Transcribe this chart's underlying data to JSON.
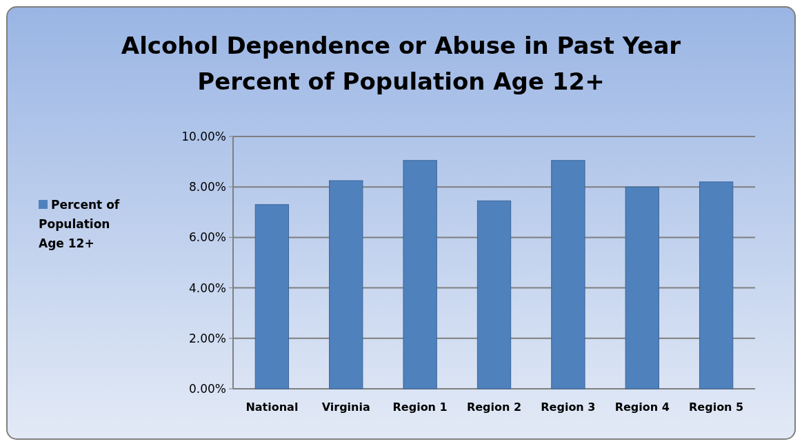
{
  "chart_data": {
    "type": "bar",
    "title": "Alcohol Dependence or Abuse in Past Year\nPercent of Population Age 12+",
    "categories": [
      "National",
      "Virginia",
      "Region 1",
      "Region 2",
      "Region 3",
      "Region 4",
      "Region 5"
    ],
    "series": [
      {
        "name": "Percent of Population Age 12+",
        "color": "#4f81bd",
        "values": [
          7.3,
          8.25,
          9.05,
          7.45,
          9.05,
          8.0,
          8.2
        ]
      }
    ],
    "ylim": [
      0,
      10
    ],
    "yticks": [
      {
        "value": 0,
        "label": "0.00%"
      },
      {
        "value": 2,
        "label": "2.00%"
      },
      {
        "value": 4,
        "label": "4.00%"
      },
      {
        "value": 6,
        "label": "6.00%"
      },
      {
        "value": 8,
        "label": "8.00%"
      },
      {
        "value": 10,
        "label": "10.00%"
      }
    ],
    "grid": "y",
    "legend": "left"
  }
}
